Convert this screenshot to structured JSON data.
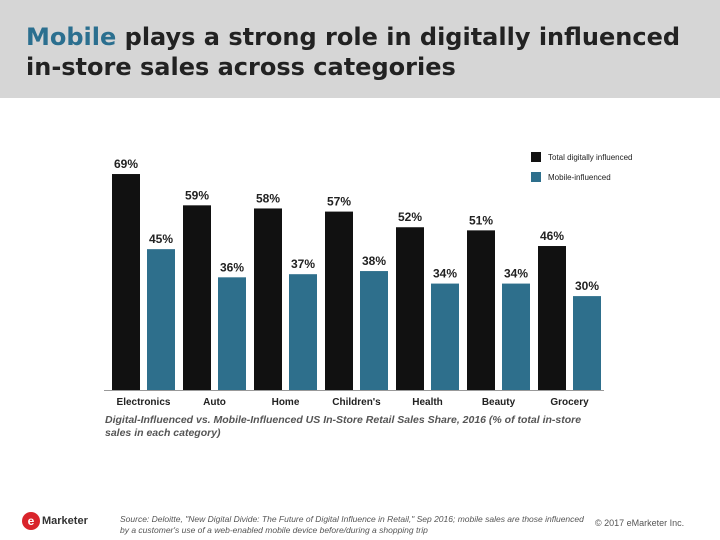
{
  "header": {
    "title_accent": "Mobile",
    "title_rest": " plays a strong role in digitally influenced in-store sales across categories"
  },
  "chart_data": {
    "type": "bar",
    "categories": [
      "Electronics",
      "Auto",
      "Home",
      "Children's",
      "Health",
      "Beauty",
      "Grocery"
    ],
    "series": [
      {
        "name": "Total digitally influenced",
        "values": [
          69,
          59,
          58,
          57,
          52,
          51,
          46
        ],
        "color": "#111111"
      },
      {
        "name": "Mobile-influenced",
        "values": [
          45,
          36,
          37,
          38,
          34,
          34,
          30
        ],
        "color": "#2e6f8c"
      }
    ],
    "value_suffix": "%",
    "ylim": [
      0,
      75
    ],
    "legend_position": "top-right",
    "title": "",
    "xlabel": "",
    "ylabel": ""
  },
  "caption": "Digital-Influenced vs. Mobile-Influenced US In-Store Retail Sales Share, 2016 (% of total in-store sales in each category)",
  "footer": {
    "logo_mark": "e",
    "logo_text": "Marketer",
    "source": "Source: Deloitte, \"New Digital Divide: The Future of Digital Influence in Retail,\" Sep 2016; mobile sales are those influenced by a customer's use of a web-enabled mobile device before/during a shopping trip",
    "copyright": "© 2017 eMarketer Inc."
  }
}
